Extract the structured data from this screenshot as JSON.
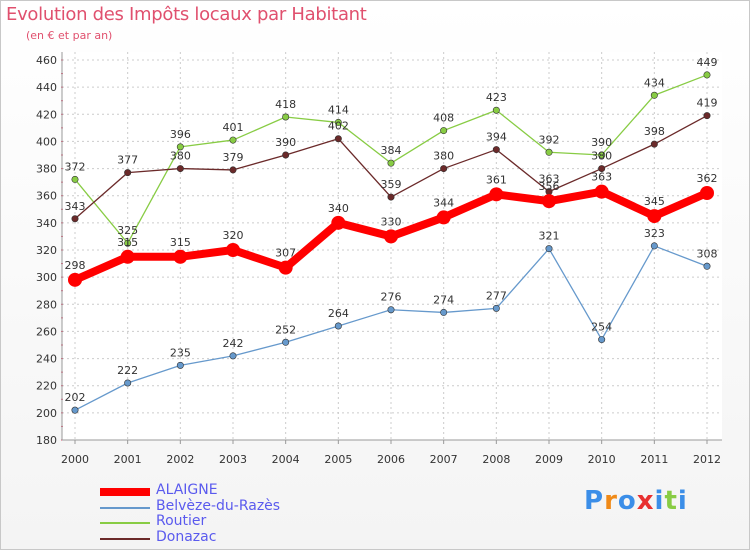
{
  "header": {
    "title": "Evolution des Impôts locaux par Habitant",
    "subtitle": "(en € et par an)"
  },
  "chart_data": {
    "type": "line",
    "title": "Evolution des Impôts locaux par Habitant",
    "subtitle": "(en € et par an)",
    "xlabel": "",
    "ylabel": "",
    "x": [
      "2000",
      "2001",
      "2002",
      "2003",
      "2004",
      "2005",
      "2006",
      "2007",
      "2008",
      "2009",
      "2010",
      "2011",
      "2012"
    ],
    "ylim": [
      180,
      460
    ],
    "yticks": [
      180,
      200,
      220,
      240,
      260,
      280,
      300,
      320,
      340,
      360,
      380,
      400,
      420,
      440,
      460
    ],
    "grid": true,
    "legend_position": "bottom-left",
    "series": [
      {
        "name": "ALAIGNE",
        "color": "#ff0000",
        "values": [
          298,
          315,
          315,
          320,
          307,
          340,
          330,
          344,
          361,
          356,
          363,
          345,
          362
        ],
        "labels": [
          "298",
          "315",
          "315",
          "320",
          "307",
          "340",
          "330",
          "344",
          "361",
          "356",
          "363",
          "345",
          "362"
        ]
      },
      {
        "name": "Belvèze-du-Razès",
        "color": "#6699cc",
        "values": [
          202,
          222,
          235,
          242,
          252,
          264,
          276,
          274,
          277,
          321,
          254,
          323,
          308
        ],
        "labels": [
          "202",
          "222",
          "235",
          "242",
          "252",
          "264",
          "276",
          "274",
          "277",
          "321",
          "254",
          "323",
          "308"
        ]
      },
      {
        "name": "Routier",
        "color": "#88cc44",
        "values": [
          372,
          325,
          396,
          401,
          418,
          414,
          384,
          408,
          423,
          392,
          390,
          434,
          449
        ],
        "labels": [
          "372",
          "325",
          "396",
          "401",
          "418",
          "414",
          "384",
          "408",
          "423",
          "392",
          "390",
          "434",
          "449"
        ]
      },
      {
        "name": "Donazac",
        "color": "#6b2a2a",
        "values": [
          343,
          377,
          380,
          379,
          390,
          402,
          359,
          380,
          394,
          363,
          380,
          398,
          419
        ],
        "labels": [
          "343",
          "377",
          "380",
          "379",
          "390",
          "402",
          "359",
          "380",
          "394",
          "363",
          "380",
          "398",
          "419"
        ]
      }
    ]
  },
  "logo": {
    "letters": [
      "P",
      "r",
      "o",
      "x",
      "i",
      "t",
      "i"
    ],
    "colors": [
      "#3b8ee8",
      "#f08a18",
      "#3b8ee8",
      "#e83030",
      "#3b8ee8",
      "#88cc44",
      "#3b8ee8"
    ]
  }
}
